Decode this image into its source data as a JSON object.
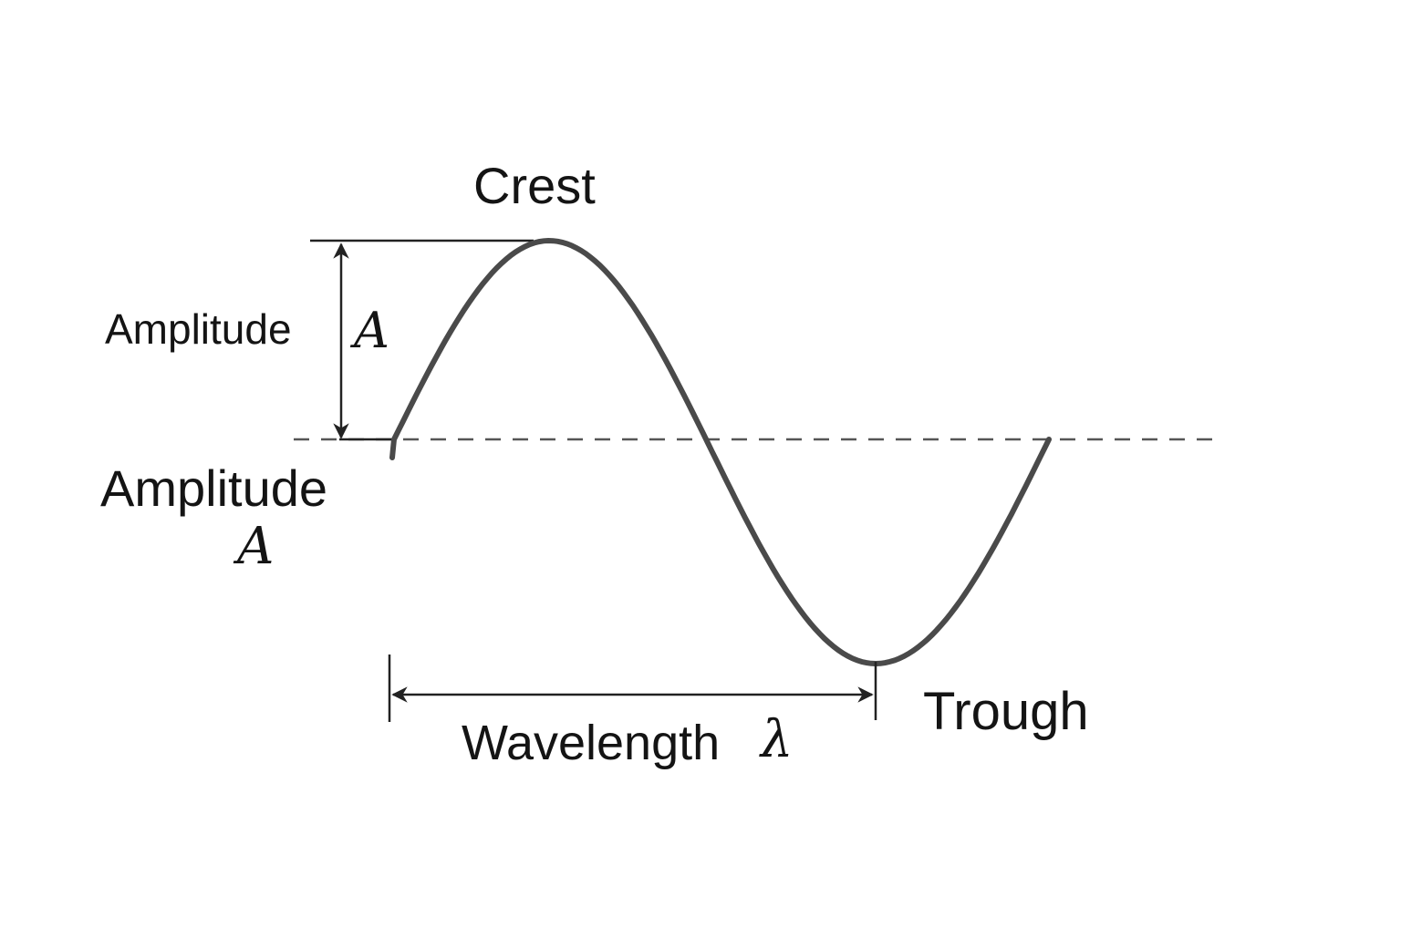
{
  "labels": {
    "crest": "Crest",
    "trough": "Trough",
    "amplitude_top": "Amplitude",
    "amplitude_top_symbol": "A",
    "amplitude_bottom": "Amplitude",
    "amplitude_bottom_symbol": "A",
    "wavelength": "Wavelength",
    "wavelength_symbol": "λ"
  },
  "colors": {
    "wave": "#4a4a4a",
    "annotation": "#222222",
    "baseline": "#555555",
    "text": "#141414"
  }
}
